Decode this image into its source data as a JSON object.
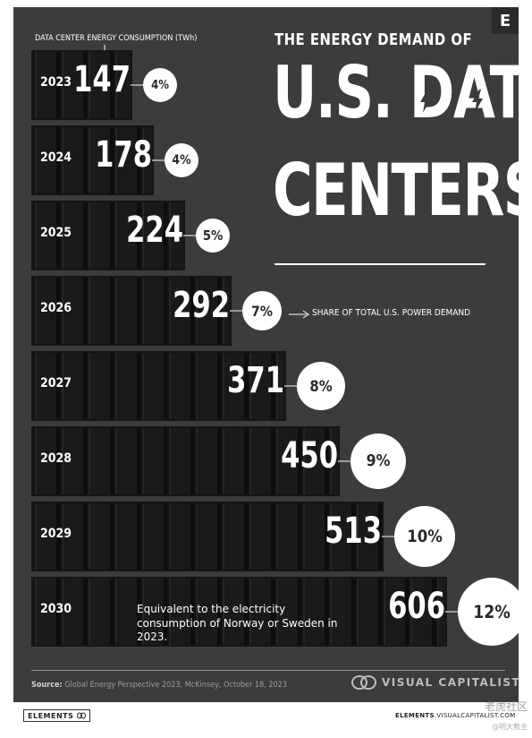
{
  "header": {
    "title_top": "THE ENERGY DEMAND OF",
    "title_line2": "U.S. DATA",
    "title_line3": "CENTERS",
    "corner_logo": "E"
  },
  "chart_data": {
    "type": "bar",
    "ylabel": "DATA CENTER ENERGY CONSUMPTION (TWh)",
    "categories": [
      "2023",
      "2024",
      "2025",
      "2026",
      "2027",
      "2028",
      "2029",
      "2030"
    ],
    "series": [
      {
        "name": "DATA CENTER ENERGY CONSUMPTION (TWh)",
        "values": [
          147,
          178,
          224,
          292,
          371,
          450,
          513,
          606
        ]
      },
      {
        "name": "SHARE OF TOTAL U.S. POWER DEMAND",
        "values": [
          "4%",
          "4%",
          "5%",
          "7%",
          "8%",
          "9%",
          "10%",
          "12%"
        ]
      }
    ],
    "annotations": [
      "SHARE OF TOTAL U.S. POWER DEMAND",
      "Equivalent to the electricity consumption of Norway or Sweden in 2023."
    ]
  },
  "share_label": "SHARE OF TOTAL U.S. POWER DEMAND",
  "equivalent_note": "Equivalent to the electricity consumption of Norway or Sweden in 2023.",
  "footer": {
    "source_label": "Source:",
    "source_text": "Global Energy Perspective 2023, McKinsey, October 18, 2023",
    "brand": "VISUAL CAPITALIST",
    "elements_label": "ELEMENTS",
    "url_bold": "ELEMENTS",
    "url_rest": ".VISUALCAPITALIST.COM"
  },
  "watermark": {
    "main": "老虎社区",
    "sub": "@明大教主"
  },
  "colors": {
    "background": "#3c3c3c",
    "text": "#ffffff",
    "circle": "#ffffff",
    "rack": "#1c1c1c"
  }
}
